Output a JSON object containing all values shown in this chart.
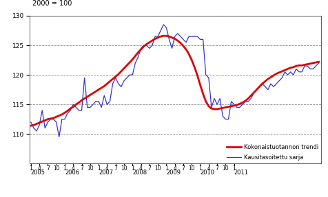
{
  "title": "2000 = 100",
  "ylim": [
    105,
    130
  ],
  "yticks": [
    110,
    115,
    120,
    125,
    130
  ],
  "legend_trend": "Kokonaistuotannon trendi",
  "legend_seasonal": "Kausitasoitettu sarja",
  "trend_color": "#dd0000",
  "seasonal_color": "#3333cc",
  "trend_linewidth": 2.0,
  "seasonal_linewidth": 0.9,
  "background_color": "#ffffff",
  "trend_data": [
    111.4,
    111.5,
    111.7,
    111.9,
    112.1,
    112.3,
    112.5,
    112.6,
    112.7,
    112.9,
    113.1,
    113.3,
    113.6,
    113.9,
    114.3,
    114.6,
    115.0,
    115.3,
    115.7,
    116.0,
    116.3,
    116.6,
    116.9,
    117.2,
    117.5,
    117.8,
    118.1,
    118.5,
    118.9,
    119.3,
    119.7,
    120.1,
    120.6,
    121.1,
    121.6,
    122.1,
    122.6,
    123.2,
    123.8,
    124.3,
    124.8,
    125.2,
    125.5,
    125.8,
    126.1,
    126.3,
    126.5,
    126.6,
    126.6,
    126.5,
    126.3,
    126.1,
    125.8,
    125.4,
    124.9,
    124.3,
    123.5,
    122.5,
    121.3,
    119.9,
    118.3,
    116.8,
    115.5,
    114.7,
    114.3,
    114.2,
    114.2,
    114.3,
    114.4,
    114.5,
    114.6,
    114.7,
    114.8,
    114.9,
    115.1,
    115.3,
    115.6,
    116.0,
    116.5,
    117.0,
    117.5,
    118.0,
    118.5,
    118.9,
    119.3,
    119.6,
    119.9,
    120.2,
    120.4,
    120.6,
    120.8,
    121.0,
    121.2,
    121.3,
    121.5,
    121.6,
    121.6,
    121.7,
    121.8,
    121.9,
    122.0,
    122.1,
    122.2
  ],
  "seasonal_data": [
    112.0,
    111.0,
    110.5,
    111.5,
    114.0,
    111.0,
    112.0,
    112.5,
    112.5,
    112.0,
    109.5,
    112.5,
    112.5,
    113.5,
    114.0,
    115.0,
    114.5,
    114.0,
    114.0,
    119.5,
    114.5,
    114.5,
    115.0,
    115.5,
    115.5,
    114.5,
    116.5,
    115.0,
    115.5,
    118.5,
    119.5,
    118.5,
    118.0,
    119.0,
    119.5,
    120.0,
    120.0,
    122.0,
    123.0,
    124.5,
    125.0,
    125.0,
    124.5,
    125.0,
    126.5,
    126.5,
    127.5,
    128.5,
    128.0,
    126.0,
    124.5,
    126.5,
    127.0,
    126.5,
    126.0,
    125.5,
    126.5,
    126.5,
    126.5,
    126.5,
    126.0,
    126.0,
    120.0,
    119.5,
    114.5,
    116.0,
    115.0,
    116.0,
    113.0,
    112.5,
    112.5,
    115.5,
    115.0,
    114.5,
    114.5,
    115.0,
    115.5,
    115.5,
    116.0,
    117.0,
    117.5,
    118.0,
    118.5,
    118.0,
    117.5,
    118.5,
    118.0,
    118.5,
    119.0,
    119.5,
    120.5,
    120.0,
    120.5,
    120.0,
    121.0,
    120.5,
    120.5,
    121.5,
    121.5,
    121.0,
    121.0,
    121.5,
    122.0
  ]
}
